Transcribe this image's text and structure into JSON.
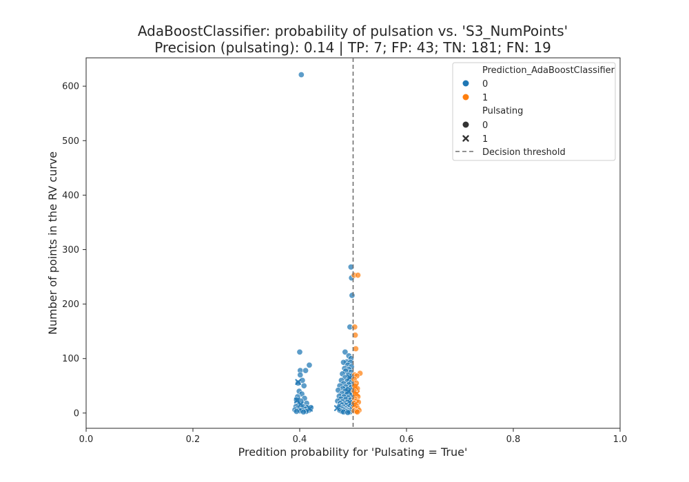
{
  "chart_data": {
    "type": "scatter",
    "title": "AdaBoostClassifier: probability of pulsation vs. 'S3_NumPoints'",
    "subtitle": "Precision (pulsating): 0.14 | TP: 7; FP: 43; TN: 181; FN: 19",
    "xlabel": "Predition probability for 'Pulsating = True'",
    "ylabel": "Number of points in the RV curve",
    "xlim": [
      0.0,
      1.0
    ],
    "ylim": [
      -28,
      652
    ],
    "xticks": [
      "0.0",
      "0.2",
      "0.4",
      "0.6",
      "0.8",
      "1.0"
    ],
    "xtick_values": [
      0.0,
      0.2,
      0.4,
      0.6,
      0.8,
      1.0
    ],
    "yticks": [
      "0",
      "100",
      "200",
      "300",
      "400",
      "500",
      "600"
    ],
    "ytick_values": [
      0,
      100,
      200,
      300,
      400,
      500,
      600
    ],
    "grid": false,
    "threshold": 0.5,
    "legend": {
      "placement": "top-right",
      "hue_title": "Prediction_AdaBoostClassifier",
      "hue_items": [
        {
          "label": "0",
          "color": "#1f77b4"
        },
        {
          "label": "1",
          "color": "#ff7f0e"
        }
      ],
      "style_title": "Pulsating",
      "style_items": [
        {
          "label": "0",
          "marker": "circle"
        },
        {
          "label": "1",
          "marker": "x"
        }
      ],
      "threshold_label": "Decision threshold"
    },
    "series": [
      {
        "prediction": 0,
        "pulsating": 0,
        "marker": "circle",
        "color": "#1f77b4",
        "points": [
          [
            0.403,
            621
          ],
          [
            0.4,
            112
          ],
          [
            0.418,
            88
          ],
          [
            0.401,
            78
          ],
          [
            0.411,
            78
          ],
          [
            0.401,
            70
          ],
          [
            0.405,
            60
          ],
          [
            0.397,
            55
          ],
          [
            0.408,
            50
          ],
          [
            0.399,
            40
          ],
          [
            0.404,
            35
          ],
          [
            0.396,
            30
          ],
          [
            0.409,
            27
          ],
          [
            0.394,
            24
          ],
          [
            0.402,
            22
          ],
          [
            0.413,
            18
          ],
          [
            0.398,
            15
          ],
          [
            0.393,
            12
          ],
          [
            0.406,
            12
          ],
          [
            0.414,
            10
          ],
          [
            0.421,
            10
          ],
          [
            0.396,
            8
          ],
          [
            0.403,
            8
          ],
          [
            0.41,
            7
          ],
          [
            0.391,
            6
          ],
          [
            0.399,
            6
          ],
          [
            0.404,
            5
          ],
          [
            0.417,
            5
          ],
          [
            0.401,
            4
          ],
          [
            0.394,
            3
          ],
          [
            0.412,
            3
          ],
          [
            0.407,
            2
          ],
          [
            0.496,
            268
          ],
          [
            0.497,
            248
          ],
          [
            0.498,
            216
          ],
          [
            0.494,
            158
          ],
          [
            0.485,
            112
          ],
          [
            0.492,
            105
          ],
          [
            0.496,
            100
          ],
          [
            0.488,
            94
          ],
          [
            0.482,
            93
          ],
          [
            0.495,
            93
          ],
          [
            0.49,
            88
          ],
          [
            0.497,
            85
          ],
          [
            0.484,
            82
          ],
          [
            0.492,
            80
          ],
          [
            0.486,
            77
          ],
          [
            0.496,
            75
          ],
          [
            0.48,
            72
          ],
          [
            0.491,
            70
          ],
          [
            0.497,
            68
          ],
          [
            0.485,
            65
          ],
          [
            0.493,
            63
          ],
          [
            0.478,
            60
          ],
          [
            0.489,
            58
          ],
          [
            0.496,
            56
          ],
          [
            0.482,
            54
          ],
          [
            0.492,
            52
          ],
          [
            0.475,
            50
          ],
          [
            0.486,
            48
          ],
          [
            0.496,
            47
          ],
          [
            0.481,
            45
          ],
          [
            0.49,
            43
          ],
          [
            0.472,
            42
          ],
          [
            0.485,
            40
          ],
          [
            0.494,
            38
          ],
          [
            0.479,
            36
          ],
          [
            0.488,
            34
          ],
          [
            0.497,
            33
          ],
          [
            0.474,
            31
          ],
          [
            0.483,
            30
          ],
          [
            0.491,
            28
          ],
          [
            0.477,
            26
          ],
          [
            0.486,
            25
          ],
          [
            0.495,
            24
          ],
          [
            0.471,
            22
          ],
          [
            0.48,
            21
          ],
          [
            0.489,
            20
          ],
          [
            0.497,
            19
          ],
          [
            0.476,
            18
          ],
          [
            0.484,
            17
          ],
          [
            0.492,
            16
          ],
          [
            0.479,
            15
          ],
          [
            0.487,
            14
          ],
          [
            0.495,
            13
          ],
          [
            0.474,
            12
          ],
          [
            0.482,
            11
          ],
          [
            0.49,
            10
          ],
          [
            0.498,
            10
          ],
          [
            0.478,
            9
          ],
          [
            0.486,
            8
          ],
          [
            0.493,
            8
          ],
          [
            0.481,
            7
          ],
          [
            0.489,
            6
          ],
          [
            0.496,
            6
          ],
          [
            0.475,
            5
          ],
          [
            0.484,
            5
          ],
          [
            0.491,
            4
          ],
          [
            0.479,
            3
          ],
          [
            0.487,
            3
          ],
          [
            0.494,
            2
          ],
          [
            0.482,
            2
          ],
          [
            0.49,
            1
          ]
        ]
      },
      {
        "prediction": 0,
        "pulsating": 1,
        "marker": "x",
        "color": "#1f77b4",
        "points": [
          [
            0.397,
            57
          ],
          [
            0.395,
            23
          ],
          [
            0.402,
            16
          ],
          [
            0.419,
            8
          ],
          [
            0.494,
            65
          ],
          [
            0.491,
            40
          ],
          [
            0.496,
            18
          ],
          [
            0.47,
            9
          ]
        ]
      },
      {
        "prediction": 1,
        "pulsating": 0,
        "marker": "circle",
        "color": "#ff7f0e",
        "points": [
          [
            0.502,
            253
          ],
          [
            0.509,
            253
          ],
          [
            0.503,
            158
          ],
          [
            0.504,
            143
          ],
          [
            0.505,
            118
          ],
          [
            0.513,
            73
          ],
          [
            0.503,
            70
          ],
          [
            0.507,
            68
          ],
          [
            0.502,
            62
          ],
          [
            0.506,
            55
          ],
          [
            0.503,
            50
          ],
          [
            0.508,
            45
          ],
          [
            0.502,
            40
          ],
          [
            0.504,
            35
          ],
          [
            0.509,
            30
          ],
          [
            0.503,
            26
          ],
          [
            0.506,
            22
          ],
          [
            0.51,
            20
          ],
          [
            0.502,
            18
          ],
          [
            0.505,
            15
          ],
          [
            0.507,
            12
          ],
          [
            0.503,
            10
          ],
          [
            0.509,
            8
          ],
          [
            0.504,
            6
          ],
          [
            0.511,
            5
          ],
          [
            0.502,
            4
          ],
          [
            0.506,
            3
          ],
          [
            0.508,
            2
          ]
        ]
      },
      {
        "prediction": 1,
        "pulsating": 1,
        "marker": "x",
        "color": "#ff7f0e",
        "points": [
          [
            0.504,
            48
          ],
          [
            0.507,
            36
          ],
          [
            0.503,
            15
          ]
        ]
      }
    ]
  }
}
